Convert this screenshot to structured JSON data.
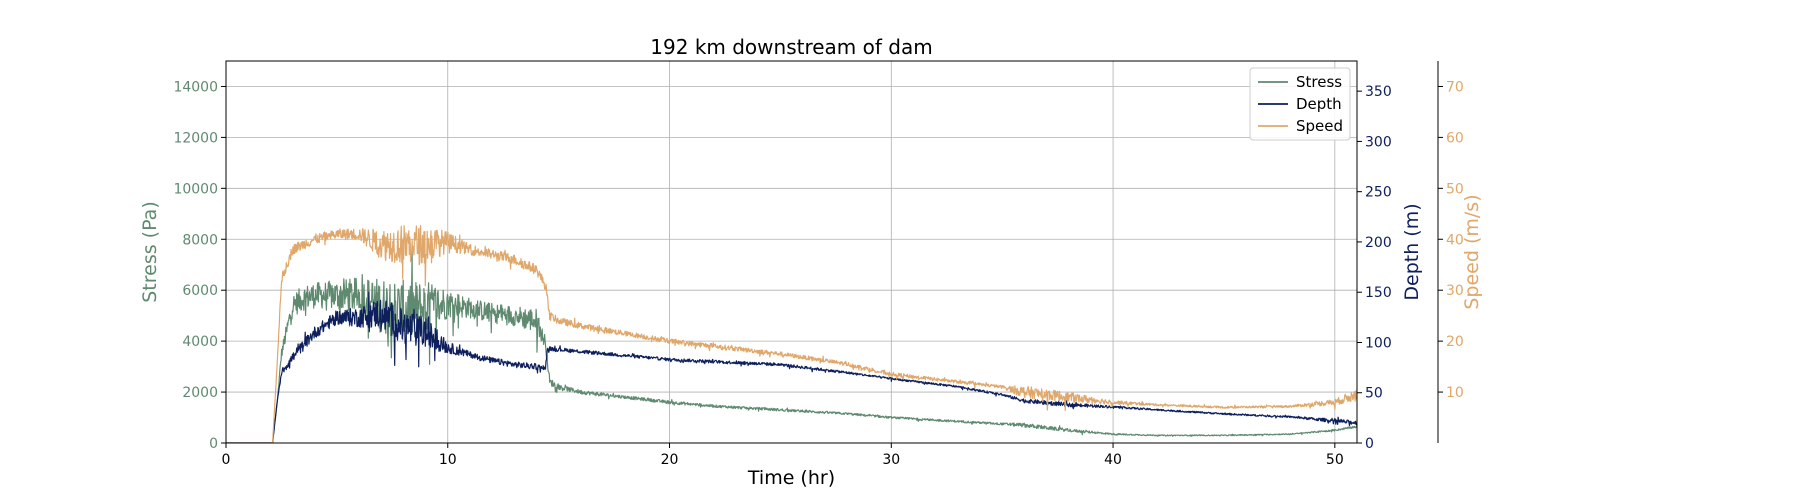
{
  "chart_data": {
    "type": "line",
    "title": "192 km downstream of dam",
    "xlabel": "Time (hr)",
    "xlim": [
      0,
      51
    ],
    "xticks": [
      0,
      10,
      20,
      30,
      40,
      50
    ],
    "grid": true,
    "legend_placement": "top-right",
    "axes": [
      {
        "id": "stress",
        "label": "Stress (Pa)",
        "side": "left",
        "color": "#5f8a70",
        "ylim": [
          0,
          15000
        ],
        "ticks": [
          0,
          2000,
          4000,
          6000,
          8000,
          10000,
          12000,
          14000
        ]
      },
      {
        "id": "depth",
        "label": "Depth (m)",
        "side": "right",
        "color": "#0d1f5c",
        "ylim": [
          0,
          380
        ],
        "ticks": [
          0,
          50,
          100,
          150,
          200,
          250,
          300,
          350
        ]
      },
      {
        "id": "speed",
        "label": "Speed (m/s)",
        "side": "right-outer",
        "color": "#e0a76a",
        "ylim": [
          0,
          75
        ],
        "ticks": [
          10,
          20,
          30,
          40,
          50,
          60,
          70
        ]
      }
    ],
    "series": [
      {
        "name": "Stress",
        "axis": "stress",
        "color": "#5f8a70",
        "x": [
          0,
          2.1,
          2.3,
          2.5,
          3,
          3.5,
          4,
          5,
          6,
          7,
          8,
          9,
          10,
          11,
          12,
          13,
          14,
          14.4,
          14.6,
          15,
          16,
          18,
          20,
          22,
          25,
          28,
          30,
          33,
          35,
          36,
          38,
          40,
          42,
          45,
          48,
          50,
          51
        ],
        "y": [
          0,
          0,
          1500,
          3500,
          5400,
          5700,
          5800,
          5800,
          5800,
          5400,
          5200,
          5300,
          5500,
          5300,
          5100,
          5000,
          4800,
          3900,
          2400,
          2200,
          2000,
          1800,
          1600,
          1450,
          1300,
          1150,
          1000,
          850,
          750,
          700,
          500,
          350,
          300,
          300,
          350,
          500,
          650
        ],
        "noise": [
          0,
          0,
          0,
          200,
          450,
          500,
          500,
          600,
          700,
          1100,
          1200,
          1100,
          600,
          400,
          400,
          400,
          500,
          200,
          150,
          100,
          80,
          60,
          60,
          50,
          50,
          40,
          40,
          40,
          40,
          80,
          60,
          30,
          20,
          20,
          20,
          30,
          40
        ]
      },
      {
        "name": "Depth",
        "axis": "depth",
        "color": "#0d1f5c",
        "x": [
          0,
          2.1,
          2.3,
          2.5,
          3,
          4,
          5,
          6,
          7,
          8,
          9,
          10,
          11,
          12,
          13,
          14,
          14.4,
          14.5,
          15,
          18,
          20,
          25,
          28,
          30,
          33,
          35,
          36,
          38,
          40,
          42,
          45,
          48,
          50,
          51
        ],
        "y": [
          0,
          0,
          40,
          70,
          85,
          110,
          125,
          125,
          130,
          115,
          110,
          95,
          88,
          82,
          78,
          76,
          74,
          94,
          93,
          87,
          83,
          78,
          70,
          64,
          56,
          48,
          42,
          38,
          36,
          33,
          29,
          26,
          22,
          20
        ],
        "noise": [
          0,
          0,
          0,
          3,
          5,
          6,
          7,
          10,
          16,
          18,
          16,
          6,
          3,
          3,
          3,
          3,
          2,
          2,
          2,
          1.5,
          1.5,
          1.5,
          1.2,
          1,
          1,
          1,
          2,
          2,
          1,
          0.8,
          0.8,
          0.8,
          2,
          2
        ]
      },
      {
        "name": "Speed",
        "axis": "speed",
        "color": "#e0a76a",
        "x": [
          0,
          2.1,
          2.3,
          2.5,
          3,
          4,
          5,
          6,
          7,
          8,
          9,
          10,
          11,
          12,
          13,
          14,
          14.4,
          14.6,
          15,
          16,
          18,
          20,
          22,
          25,
          28,
          30,
          33,
          35,
          36,
          38,
          40,
          42,
          45,
          48,
          50,
          51
        ],
        "y": [
          0,
          0,
          15,
          32,
          38,
          40,
          41,
          41,
          39,
          39,
          39,
          39.5,
          38,
          37,
          36,
          34,
          31,
          25,
          24,
          23,
          21.5,
          20,
          19,
          17.5,
          15.5,
          13.5,
          12,
          11,
          10,
          9,
          8,
          7.5,
          7,
          7.2,
          8,
          9.5
        ],
        "noise": [
          0,
          0,
          0,
          1,
          1,
          1,
          1,
          1.2,
          3,
          4,
          4,
          2,
          1,
          1,
          1,
          1,
          1,
          0.8,
          0.7,
          0.6,
          0.5,
          0.5,
          0.5,
          0.4,
          0.4,
          0.4,
          0.3,
          0.3,
          1.2,
          1,
          0.4,
          0.2,
          0.2,
          0.2,
          0.6,
          1.2
        ]
      }
    ]
  }
}
